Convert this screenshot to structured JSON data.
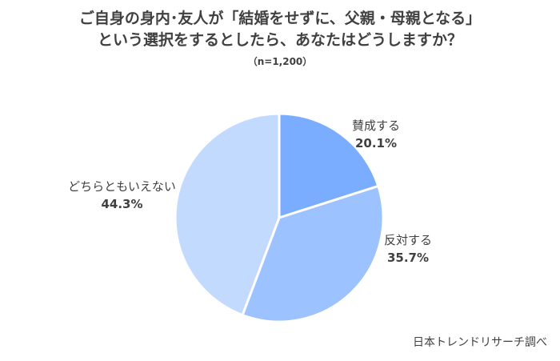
{
  "chart_data": {
    "type": "pie",
    "title_line1": "ご自身の身内･友人が「結婚をせずに、父親・母親となる」",
    "title_line2": "という選択をするとしたら、あなたはどうしますか？",
    "subtitle": "（n=1,200）",
    "slices": [
      {
        "label": "賛成する",
        "value": 20.1,
        "display": "20.1%",
        "color": "#7aadff"
      },
      {
        "label": "反対する",
        "value": 35.7,
        "display": "35.7%",
        "color": "#9cc2ff"
      },
      {
        "label": "どちらともいえない",
        "value": 44.3,
        "display": "44.3%",
        "color": "#c3daff"
      }
    ],
    "start_angle_deg": 0,
    "direction": "clockwise"
  },
  "source": "日本トレンドリサーチ調べ"
}
